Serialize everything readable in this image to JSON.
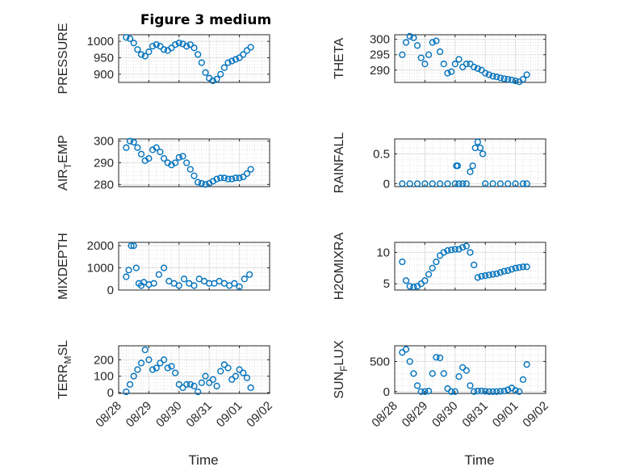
{
  "title": "Figure 3 medium",
  "colors": {
    "marker": "#0072bd",
    "axes": "#262626",
    "grid": "#dfdfdf"
  },
  "chart_data": [
    {
      "type": "scatter",
      "ylabel": "PRESSURE",
      "ylabel_sub": "",
      "ylim": [
        875,
        1020
      ],
      "yticks": [
        900,
        950,
        1000
      ],
      "yticklabels": [
        "900",
        "950",
        "1000"
      ],
      "x": [
        "08/28 06:00",
        "08/28 09:00",
        "08/28 12:00",
        "08/28 15:00",
        "08/28 18:00",
        "08/28 21:00",
        "08/29 00:00",
        "08/29 03:00",
        "08/29 06:00",
        "08/29 09:00",
        "08/29 12:00",
        "08/29 15:00",
        "08/29 18:00",
        "08/29 21:00",
        "08/30 00:00",
        "08/30 03:00",
        "08/30 06:00",
        "08/30 09:00",
        "08/30 12:00",
        "08/30 15:00",
        "08/30 18:00",
        "08/30 21:00",
        "08/31 00:00",
        "08/31 03:00",
        "08/31 06:00",
        "08/31 09:00",
        "08/31 12:00",
        "08/31 15:00",
        "08/31 18:00",
        "08/31 21:00",
        "09/01 00:00",
        "09/01 03:00",
        "09/01 06:00",
        "09/01 09:00"
      ],
      "y": [
        1012,
        1008,
        995,
        975,
        960,
        955,
        968,
        985,
        990,
        985,
        975,
        972,
        980,
        990,
        995,
        992,
        985,
        990,
        980,
        960,
        935,
        905,
        888,
        880,
        885,
        900,
        920,
        935,
        940,
        945,
        950,
        960,
        972,
        982
      ]
    },
    {
      "type": "scatter",
      "ylabel": "THETA",
      "ylabel_sub": "",
      "ylim": [
        286,
        301.5
      ],
      "yticks": [
        290,
        295,
        300
      ],
      "yticklabels": [
        "290",
        "295",
        "300"
      ],
      "x": [
        "08/28 06:00",
        "08/28 09:00",
        "08/28 12:00",
        "08/28 15:00",
        "08/28 18:00",
        "08/28 21:00",
        "08/29 00:00",
        "08/29 03:00",
        "08/29 06:00",
        "08/29 09:00",
        "08/29 12:00",
        "08/29 15:00",
        "08/29 18:00",
        "08/29 21:00",
        "08/30 00:00",
        "08/30 03:00",
        "08/30 06:00",
        "08/30 09:00",
        "08/30 12:00",
        "08/30 15:00",
        "08/30 18:00",
        "08/30 21:00",
        "08/31 00:00",
        "08/31 03:00",
        "08/31 06:00",
        "08/31 09:00",
        "08/31 12:00",
        "08/31 15:00",
        "08/31 18:00",
        "08/31 21:00",
        "09/01 00:00",
        "09/01 03:00",
        "09/01 06:00",
        "09/01 09:00"
      ],
      "y": [
        295,
        299,
        301,
        300.5,
        298,
        294,
        292,
        295,
        299,
        299.5,
        296,
        292,
        289,
        289.5,
        292,
        293.5,
        291,
        292,
        292,
        291,
        290.5,
        290,
        289,
        288.5,
        288,
        287.8,
        287.5,
        287.2,
        287,
        286.8,
        286.5,
        286.2,
        287,
        288.5
      ]
    },
    {
      "type": "scatter",
      "ylabel": "AIR",
      "ylabel_sub": "T",
      "ylabel_tail": "EMP",
      "ylim": [
        279,
        301
      ],
      "yticks": [
        280,
        290,
        300
      ],
      "yticklabels": [
        "280",
        "290",
        "300"
      ],
      "x": [
        "08/28 06:00",
        "08/28 09:00",
        "08/28 12:00",
        "08/28 15:00",
        "08/28 18:00",
        "08/28 21:00",
        "08/29 00:00",
        "08/29 03:00",
        "08/29 06:00",
        "08/29 09:00",
        "08/29 12:00",
        "08/29 15:00",
        "08/29 18:00",
        "08/29 21:00",
        "08/30 00:00",
        "08/30 03:00",
        "08/30 06:00",
        "08/30 09:00",
        "08/30 12:00",
        "08/30 15:00",
        "08/30 18:00",
        "08/30 21:00",
        "08/31 00:00",
        "08/31 03:00",
        "08/31 06:00",
        "08/31 09:00",
        "08/31 12:00",
        "08/31 15:00",
        "08/31 18:00",
        "08/31 21:00",
        "09/01 00:00",
        "09/01 03:00",
        "09/01 06:00",
        "09/01 09:00"
      ],
      "y": [
        297,
        300,
        299.5,
        297,
        294,
        291,
        292,
        296,
        297,
        295,
        292,
        290,
        289,
        290,
        292.5,
        293,
        290,
        287,
        284,
        281,
        280.5,
        280,
        280.5,
        281.5,
        282.5,
        283,
        283,
        282.5,
        282.5,
        283,
        283,
        283.5,
        285,
        287
      ]
    },
    {
      "type": "scatter",
      "ylabel": "RAINFALL",
      "ylabel_sub": "",
      "ylim": [
        -0.05,
        0.75
      ],
      "yticks": [
        0,
        0.5
      ],
      "yticklabels": [
        "0",
        "0.5"
      ],
      "x": [
        "08/28 06:00",
        "08/28 12:00",
        "08/28 18:00",
        "08/29 00:00",
        "08/29 06:00",
        "08/29 12:00",
        "08/29 18:00",
        "08/30 00:00",
        "08/30 01:00",
        "08/30 02:00",
        "08/30 03:00",
        "08/30 06:00",
        "08/30 09:00",
        "08/30 12:00",
        "08/30 14:00",
        "08/30 16:00",
        "08/30 18:00",
        "08/30 20:00",
        "08/30 22:00",
        "08/31 00:00",
        "08/31 06:00",
        "08/31 12:00",
        "08/31 18:00",
        "09/01 00:00",
        "09/01 06:00",
        "09/01 09:00"
      ],
      "y": [
        0,
        0,
        0,
        0,
        0,
        0,
        0,
        0,
        0.3,
        0.3,
        0,
        0,
        0,
        0.2,
        0.3,
        0.6,
        0.7,
        0.6,
        0.5,
        0,
        0,
        0,
        0,
        0,
        0,
        0
      ]
    },
    {
      "type": "scatter",
      "ylabel": "MIXDEPTH",
      "ylabel_sub": "",
      "ylim": [
        0,
        2150
      ],
      "yticks": [
        0,
        1000,
        2000
      ],
      "yticklabels": [
        "0",
        "1000",
        "2000"
      ],
      "x": [
        "08/28 06:00",
        "08/28 08:00",
        "08/28 10:00",
        "08/28 12:00",
        "08/28 14:00",
        "08/28 16:00",
        "08/28 18:00",
        "08/28 20:00",
        "08/29 00:00",
        "08/29 04:00",
        "08/29 08:00",
        "08/29 12:00",
        "08/29 16:00",
        "08/29 20:00",
        "08/30 00:00",
        "08/30 04:00",
        "08/30 08:00",
        "08/30 12:00",
        "08/30 16:00",
        "08/30 20:00",
        "08/31 00:00",
        "08/31 04:00",
        "08/31 08:00",
        "08/31 12:00",
        "08/31 16:00",
        "08/31 20:00",
        "09/01 00:00",
        "09/01 04:00",
        "09/01 08:00"
      ],
      "y": [
        600,
        900,
        2000,
        2000,
        1000,
        300,
        200,
        350,
        250,
        300,
        700,
        1000,
        400,
        300,
        200,
        500,
        300,
        200,
        500,
        400,
        300,
        300,
        400,
        300,
        200,
        300,
        150,
        500,
        700
      ]
    },
    {
      "type": "scatter",
      "ylabel": "H2OMIXRA",
      "ylabel_sub": "",
      "ylim": [
        4,
        11.6
      ],
      "yticks": [
        5,
        10
      ],
      "yticklabels": [
        "5",
        "10"
      ],
      "x": [
        "08/28 06:00",
        "08/28 09:00",
        "08/28 12:00",
        "08/28 15:00",
        "08/28 18:00",
        "08/28 21:00",
        "08/29 00:00",
        "08/29 03:00",
        "08/29 06:00",
        "08/29 09:00",
        "08/29 12:00",
        "08/29 15:00",
        "08/29 18:00",
        "08/29 21:00",
        "08/30 00:00",
        "08/30 03:00",
        "08/30 06:00",
        "08/30 09:00",
        "08/30 12:00",
        "08/30 15:00",
        "08/30 18:00",
        "08/30 21:00",
        "08/31 00:00",
        "08/31 03:00",
        "08/31 06:00",
        "08/31 09:00",
        "08/31 12:00",
        "08/31 15:00",
        "08/31 18:00",
        "08/31 21:00",
        "09/01 00:00",
        "09/01 03:00",
        "09/01 06:00",
        "09/01 09:00"
      ],
      "y": [
        8.5,
        5.5,
        4.6,
        4.5,
        4.6,
        5,
        5.5,
        6.5,
        7.5,
        8.5,
        9.5,
        10,
        10.3,
        10.4,
        10.5,
        10.5,
        10.8,
        11,
        10,
        8,
        6,
        6.2,
        6.3,
        6.4,
        6.5,
        6.6,
        6.8,
        7,
        7.1,
        7.3,
        7.5,
        7.6,
        7.7,
        7.7
      ]
    },
    {
      "type": "scatter",
      "ylabel": "TERR",
      "ylabel_sub": "M",
      "ylabel_tail": "SL",
      "ylim": [
        -5,
        285
      ],
      "yticks": [
        0,
        100,
        200
      ],
      "yticklabels": [
        "0",
        "100",
        "200"
      ],
      "x": [
        "08/28 06:00",
        "08/28 09:00",
        "08/28 12:00",
        "08/28 15:00",
        "08/28 18:00",
        "08/28 21:00",
        "08/29 00:00",
        "08/29 03:00",
        "08/29 06:00",
        "08/29 09:00",
        "08/29 12:00",
        "08/29 15:00",
        "08/29 18:00",
        "08/29 21:00",
        "08/30 00:00",
        "08/30 03:00",
        "08/30 06:00",
        "08/30 09:00",
        "08/30 12:00",
        "08/30 15:00",
        "08/30 18:00",
        "08/30 21:00",
        "08/31 00:00",
        "08/31 03:00",
        "08/31 06:00",
        "08/31 09:00",
        "08/31 12:00",
        "08/31 15:00",
        "08/31 18:00",
        "08/31 21:00",
        "09/01 00:00",
        "09/01 03:00",
        "09/01 06:00",
        "09/01 09:00"
      ],
      "y": [
        5,
        50,
        100,
        140,
        180,
        260,
        200,
        140,
        150,
        180,
        200,
        150,
        160,
        120,
        50,
        30,
        50,
        50,
        40,
        5,
        60,
        100,
        60,
        80,
        40,
        130,
        170,
        150,
        80,
        100,
        140,
        120,
        90,
        30
      ]
    },
    {
      "type": "scatter",
      "ylabel": "SUN",
      "ylabel_sub": "F",
      "ylabel_tail": "LUX",
      "ylim": [
        -30,
        760
      ],
      "yticks": [
        0,
        500
      ],
      "yticklabels": [
        "0",
        "500"
      ],
      "x": [
        "08/28 06:00",
        "08/28 09:00",
        "08/28 12:00",
        "08/28 15:00",
        "08/28 18:00",
        "08/28 21:00",
        "08/29 00:00",
        "08/29 03:00",
        "08/29 06:00",
        "08/29 09:00",
        "08/29 12:00",
        "08/29 15:00",
        "08/29 18:00",
        "08/29 21:00",
        "08/30 00:00",
        "08/30 03:00",
        "08/30 06:00",
        "08/30 09:00",
        "08/30 12:00",
        "08/30 15:00",
        "08/30 18:00",
        "08/30 21:00",
        "08/31 00:00",
        "08/31 03:00",
        "08/31 06:00",
        "08/31 09:00",
        "08/31 12:00",
        "08/31 15:00",
        "08/31 18:00",
        "08/31 21:00",
        "09/01 00:00",
        "09/01 03:00",
        "09/01 06:00",
        "09/01 09:00"
      ],
      "y": [
        650,
        700,
        500,
        300,
        100,
        0,
        0,
        10,
        300,
        570,
        560,
        300,
        50,
        0,
        0,
        250,
        400,
        350,
        100,
        0,
        10,
        10,
        5,
        0,
        0,
        0,
        5,
        10,
        30,
        60,
        20,
        0,
        200,
        450
      ]
    }
  ],
  "xaxis": {
    "lim": [
      "08/28 00:00",
      "09/02 00:00"
    ],
    "ticks": [
      "08/28 00:00",
      "08/29 00:00",
      "08/30 00:00",
      "08/31 00:00",
      "09/01 00:00",
      "09/02 00:00"
    ],
    "ticklabels": [
      "08/28",
      "08/29",
      "08/30",
      "08/31",
      "09/01",
      "09/02"
    ],
    "label": "Time"
  },
  "grid": true,
  "minor_grid": true
}
